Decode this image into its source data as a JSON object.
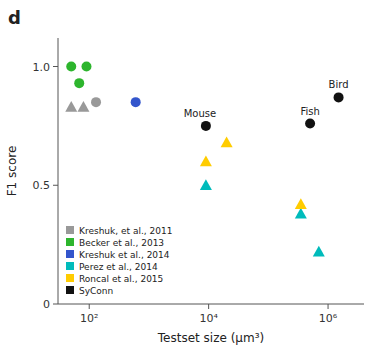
{
  "chart_data": {
    "type": "scatter",
    "title": "d",
    "x_label": "Testset size (μm³)",
    "y_label": "F1 score",
    "log": "x",
    "grid": false,
    "legend": "lower left",
    "xlim": [
      30,
      4000000
    ],
    "ylim": [
      0,
      1.12
    ],
    "xticks": [
      {
        "value": 100,
        "label": "10²"
      },
      {
        "value": 10000,
        "label": "10⁴"
      },
      {
        "value": 1000000,
        "label": "10⁶"
      }
    ],
    "yticks": [
      0,
      0.5,
      {
        "value": 1.0,
        "label": "1.0"
      }
    ],
    "series": [
      {
        "name": "Kreshuk, et al., 2011",
        "color": "#999999",
        "x": [
          50,
          80,
          130
        ],
        "values": [
          0.83,
          0.83,
          0.85
        ],
        "markers": [
          "triangle",
          "triangle",
          "circle"
        ]
      },
      {
        "name": "Becker et al., 2013",
        "color": "#2db52d",
        "x": [
          50,
          90,
          68
        ],
        "values": [
          1.0,
          1.0,
          0.93
        ],
        "markers": [
          "circle",
          "circle",
          "circle"
        ]
      },
      {
        "name": "Kreshuk et al., 2014",
        "color": "#3355cc",
        "x": [
          600
        ],
        "values": [
          0.85
        ],
        "markers": [
          "circle"
        ]
      },
      {
        "name": "Perez et al., 2014",
        "color": "#00bbbb",
        "x": [
          9000,
          350000,
          700000
        ],
        "values": [
          0.5,
          0.38,
          0.22
        ],
        "markers": [
          "triangle",
          "triangle",
          "triangle"
        ]
      },
      {
        "name": "Roncal et al., 2015",
        "color": "#ffcc00",
        "x": [
          9000,
          20000,
          350000
        ],
        "values": [
          0.6,
          0.68,
          0.42
        ],
        "markers": [
          "triangle",
          "triangle",
          "triangle"
        ]
      },
      {
        "name": "SyConn",
        "color": "#111111",
        "x": [
          9000,
          500000,
          1500000
        ],
        "values": [
          0.75,
          0.76,
          0.87
        ],
        "markers": [
          "circle",
          "circle",
          "circle"
        ],
        "point_labels": [
          "Mouse",
          "Fish",
          "Bird"
        ]
      }
    ]
  }
}
